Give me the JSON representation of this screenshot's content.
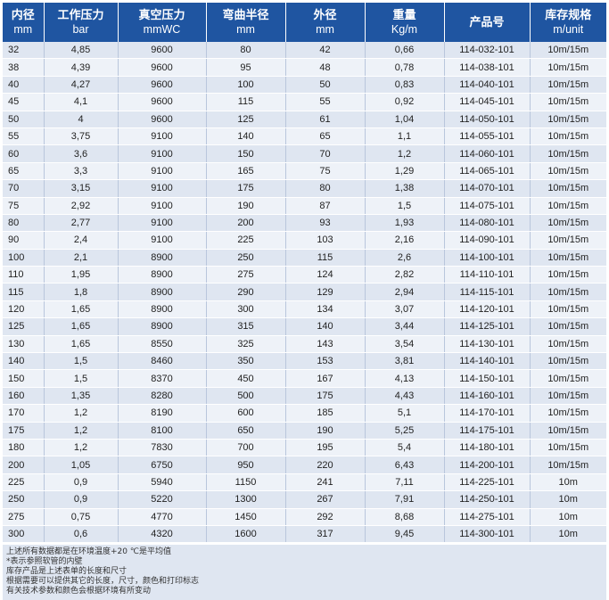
{
  "headers": [
    {
      "line1": "内径",
      "line2": "mm"
    },
    {
      "line1": "工作压力",
      "line2": "bar"
    },
    {
      "line1": "真空压力",
      "line2": "mmWC"
    },
    {
      "line1": "弯曲半径",
      "line2": "mm"
    },
    {
      "line1": "外径",
      "line2": "mm"
    },
    {
      "line1": "重量",
      "line2": "Kg/m"
    },
    {
      "line1": "产品号",
      "line2": ""
    },
    {
      "line1": "库存规格",
      "line2": "m/unit"
    }
  ],
  "rows": [
    [
      "32",
      "4,85",
      "9600",
      "80",
      "42",
      "0,66",
      "114-032-101",
      "10m/15m"
    ],
    [
      "38",
      "4,39",
      "9600",
      "95",
      "48",
      "0,78",
      "114-038-101",
      "10m/15m"
    ],
    [
      "40",
      "4,27",
      "9600",
      "100",
      "50",
      "0,83",
      "114-040-101",
      "10m/15m"
    ],
    [
      "45",
      "4,1",
      "9600",
      "115",
      "55",
      "0,92",
      "114-045-101",
      "10m/15m"
    ],
    [
      "50",
      "4",
      "9600",
      "125",
      "61",
      "1,04",
      "114-050-101",
      "10m/15m"
    ],
    [
      "55",
      "3,75",
      "9100",
      "140",
      "65",
      "1,1",
      "114-055-101",
      "10m/15m"
    ],
    [
      "60",
      "3,6",
      "9100",
      "150",
      "70",
      "1,2",
      "114-060-101",
      "10m/15m"
    ],
    [
      "65",
      "3,3",
      "9100",
      "165",
      "75",
      "1,29",
      "114-065-101",
      "10m/15m"
    ],
    [
      "70",
      "3,15",
      "9100",
      "175",
      "80",
      "1,38",
      "114-070-101",
      "10m/15m"
    ],
    [
      "75",
      "2,92",
      "9100",
      "190",
      "87",
      "1,5",
      "114-075-101",
      "10m/15m"
    ],
    [
      "80",
      "2,77",
      "9100",
      "200",
      "93",
      "1,93",
      "114-080-101",
      "10m/15m"
    ],
    [
      "90",
      "2,4",
      "9100",
      "225",
      "103",
      "2,16",
      "114-090-101",
      "10m/15m"
    ],
    [
      "100",
      "2,1",
      "8900",
      "250",
      "115",
      "2,6",
      "114-100-101",
      "10m/15m"
    ],
    [
      "110",
      "1,95",
      "8900",
      "275",
      "124",
      "2,82",
      "114-110-101",
      "10m/15m"
    ],
    [
      "115",
      "1,8",
      "8900",
      "290",
      "129",
      "2,94",
      "114-115-101",
      "10m/15m"
    ],
    [
      "120",
      "1,65",
      "8900",
      "300",
      "134",
      "3,07",
      "114-120-101",
      "10m/15m"
    ],
    [
      "125",
      "1,65",
      "8900",
      "315",
      "140",
      "3,44",
      "114-125-101",
      "10m/15m"
    ],
    [
      "130",
      "1,65",
      "8550",
      "325",
      "143",
      "3,54",
      "114-130-101",
      "10m/15m"
    ],
    [
      "140",
      "1,5",
      "8460",
      "350",
      "153",
      "3,81",
      "114-140-101",
      "10m/15m"
    ],
    [
      "150",
      "1,5",
      "8370",
      "450",
      "167",
      "4,13",
      "114-150-101",
      "10m/15m"
    ],
    [
      "160",
      "1,35",
      "8280",
      "500",
      "175",
      "4,43",
      "114-160-101",
      "10m/15m"
    ],
    [
      "170",
      "1,2",
      "8190",
      "600",
      "185",
      "5,1",
      "114-170-101",
      "10m/15m"
    ],
    [
      "175",
      "1,2",
      "8100",
      "650",
      "190",
      "5,25",
      "114-175-101",
      "10m/15m"
    ],
    [
      "180",
      "1,2",
      "7830",
      "700",
      "195",
      "5,4",
      "114-180-101",
      "10m/15m"
    ],
    [
      "200",
      "1,05",
      "6750",
      "950",
      "220",
      "6,43",
      "114-200-101",
      "10m/15m"
    ],
    [
      "225",
      "0,9",
      "5940",
      "1150",
      "241",
      "7,11",
      "114-225-101",
      "10m"
    ],
    [
      "250",
      "0,9",
      "5220",
      "1300",
      "267",
      "7,91",
      "114-250-101",
      "10m"
    ],
    [
      "275",
      "0,75",
      "4770",
      "1450",
      "292",
      "8,68",
      "114-275-101",
      "10m"
    ],
    [
      "300",
      "0,6",
      "4320",
      "1600",
      "317",
      "9,45",
      "114-300-101",
      "10m"
    ]
  ],
  "notes": [
    "上述所有数据都是在环境温度+20 ℃是平均值",
    "*表示参照软管的内壁",
    "库存产品是上述表单的长度和尺寸",
    "根据需要可以提供其它的长度，尺寸，颜色和打印标志",
    "有关技术参数和颜色会根据环境有所变动"
  ]
}
